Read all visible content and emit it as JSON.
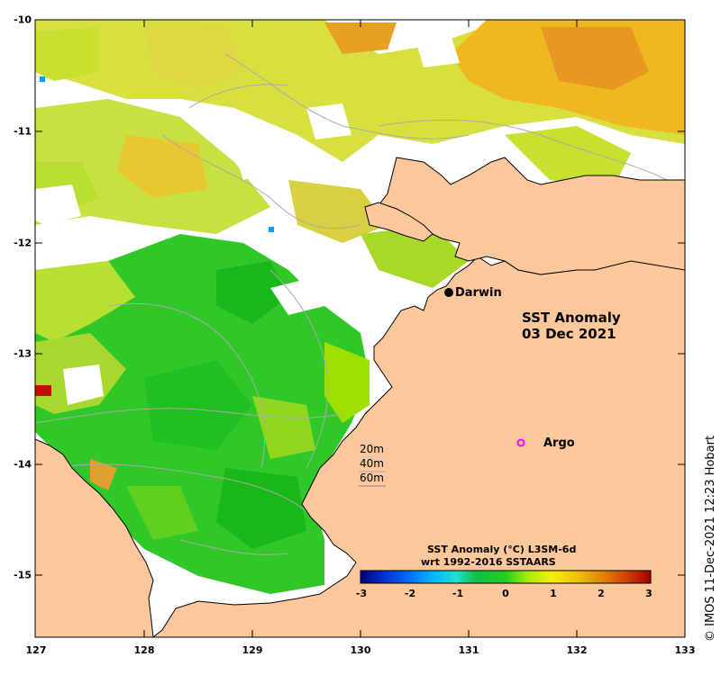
{
  "title_line1": "SST Anomaly",
  "title_line2": "03 Dec 2021",
  "places": {
    "darwin": "Darwin",
    "argo": "Argo"
  },
  "depth_contours": [
    "20m",
    "40m",
    "60m"
  ],
  "colorbar": {
    "title_line1": "SST Anomaly (°C) L3SM-6d",
    "title_line2": "wrt 1992-2016 SSTAARS",
    "min": -3,
    "max": 3,
    "tick_values": [
      -3,
      -2,
      -1,
      0,
      1,
      2,
      3
    ],
    "tick_labels": [
      "-3",
      "-2",
      "-1",
      "0",
      "1",
      "2",
      "3"
    ],
    "colors": [
      "#000080",
      "#0020c0",
      "#0060ff",
      "#00c0ff",
      "#20e0c0",
      "#10c040",
      "#20d020",
      "#a0f000",
      "#f0f000",
      "#f0c000",
      "#e08000",
      "#d04000",
      "#a00000"
    ]
  },
  "axes": {
    "lon_ticks": [
      "127",
      "128",
      "129",
      "130",
      "131",
      "132",
      "133"
    ],
    "lat_ticks": [
      "-10",
      "-11",
      "-12",
      "-13",
      "-14",
      "-15"
    ],
    "lon_range": [
      127,
      133
    ],
    "lat_range": [
      -15.6,
      -10
    ]
  },
  "credit": "© IMOS 11-Dec-2021 12:23 Hobart",
  "colors": {
    "land": "#fcc89b",
    "nodata": "#ffffff",
    "argo_marker": "#ff00ff",
    "darwin_marker": "#000000",
    "contour": "#aaaaaa"
  }
}
